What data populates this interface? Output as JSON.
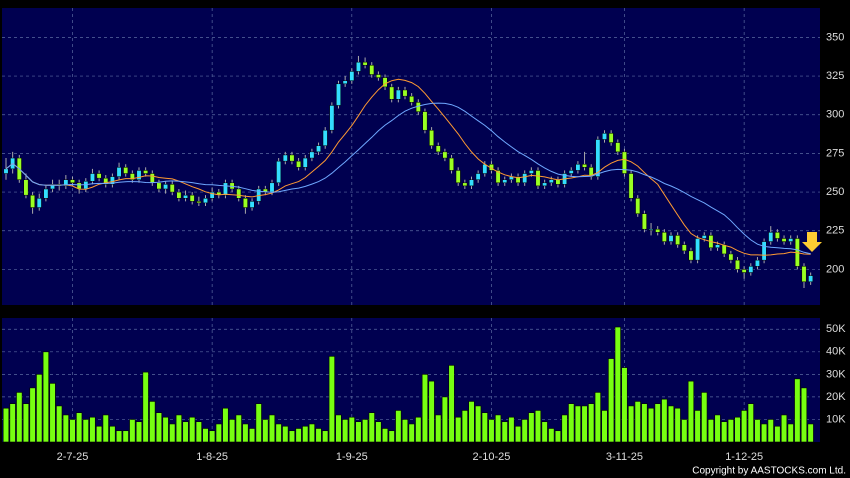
{
  "chart_data": {
    "type": "candlestick",
    "ohlc": [
      [
        262,
        272,
        258,
        265
      ],
      [
        265,
        276,
        262,
        272
      ],
      [
        272,
        274,
        256,
        258
      ],
      [
        258,
        262,
        246,
        248
      ],
      [
        248,
        250,
        236,
        240
      ],
      [
        240,
        249,
        238,
        246
      ],
      [
        246,
        254,
        244,
        252
      ],
      [
        252,
        258,
        250,
        255
      ],
      [
        255,
        258,
        251,
        254
      ],
      [
        254,
        261,
        252,
        258
      ],
      [
        258,
        260,
        254,
        256
      ],
      [
        256,
        258,
        249,
        252
      ],
      [
        252,
        259,
        250,
        257
      ],
      [
        257,
        265,
        255,
        262
      ],
      [
        262,
        264,
        257,
        259
      ],
      [
        259,
        261,
        253,
        255
      ],
      [
        255,
        262,
        253,
        260
      ],
      [
        260,
        269,
        258,
        266
      ],
      [
        266,
        268,
        260,
        262
      ],
      [
        262,
        264,
        256,
        258
      ],
      [
        258,
        266,
        256,
        264
      ],
      [
        264,
        266,
        260,
        262
      ],
      [
        262,
        264,
        254,
        256
      ],
      [
        256,
        258,
        250,
        252
      ],
      [
        252,
        257,
        249,
        255
      ],
      [
        255,
        257,
        248,
        250
      ],
      [
        250,
        252,
        244,
        246
      ],
      [
        246,
        251,
        244,
        248
      ],
      [
        248,
        250,
        242,
        244
      ],
      [
        244,
        247,
        241,
        243
      ],
      [
        243,
        248,
        241,
        246
      ],
      [
        246,
        253,
        244,
        250
      ],
      [
        250,
        252,
        246,
        248
      ],
      [
        248,
        258,
        246,
        256
      ],
      [
        256,
        258,
        250,
        252
      ],
      [
        252,
        254,
        244,
        246
      ],
      [
        246,
        248,
        236,
        240
      ],
      [
        240,
        246,
        238,
        244
      ],
      [
        244,
        254,
        242,
        252
      ],
      [
        252,
        254,
        248,
        250
      ],
      [
        250,
        258,
        248,
        256
      ],
      [
        256,
        272,
        254,
        270
      ],
      [
        270,
        276,
        268,
        274
      ],
      [
        274,
        276,
        268,
        270
      ],
      [
        270,
        272,
        264,
        266
      ],
      [
        266,
        274,
        264,
        272
      ],
      [
        272,
        278,
        270,
        276
      ],
      [
        276,
        282,
        274,
        280
      ],
      [
        280,
        292,
        278,
        290
      ],
      [
        290,
        308,
        288,
        306
      ],
      [
        306,
        322,
        304,
        320
      ],
      [
        320,
        325,
        318,
        322
      ],
      [
        322,
        330,
        320,
        328
      ],
      [
        328,
        338,
        326,
        334
      ],
      [
        334,
        337,
        330,
        332
      ],
      [
        332,
        334,
        324,
        326
      ],
      [
        326,
        328,
        322,
        324
      ],
      [
        324,
        326,
        316,
        318
      ],
      [
        318,
        320,
        308,
        310
      ],
      [
        310,
        318,
        308,
        316
      ],
      [
        316,
        318,
        310,
        312
      ],
      [
        312,
        314,
        306,
        308
      ],
      [
        308,
        310,
        300,
        302
      ],
      [
        302,
        304,
        288,
        290
      ],
      [
        290,
        292,
        278,
        280
      ],
      [
        280,
        282,
        274,
        276
      ],
      [
        276,
        278,
        270,
        272
      ],
      [
        272,
        274,
        262,
        264
      ],
      [
        264,
        266,
        254,
        256
      ],
      [
        256,
        258,
        252,
        254
      ],
      [
        254,
        260,
        252,
        258
      ],
      [
        258,
        264,
        256,
        262
      ],
      [
        262,
        270,
        260,
        268
      ],
      [
        268,
        270,
        262,
        264
      ],
      [
        264,
        266,
        254,
        256
      ],
      [
        256,
        260,
        254,
        258
      ],
      [
        258,
        262,
        256,
        260
      ],
      [
        260,
        262,
        254,
        256
      ],
      [
        256,
        264,
        254,
        262
      ],
      [
        262,
        266,
        260,
        264
      ],
      [
        264,
        266,
        252,
        254
      ],
      [
        254,
        258,
        252,
        256
      ],
      [
        256,
        260,
        254,
        258
      ],
      [
        258,
        260,
        253,
        255
      ],
      [
        255,
        264,
        253,
        262
      ],
      [
        262,
        266,
        260,
        264
      ],
      [
        264,
        270,
        262,
        268
      ],
      [
        268,
        276,
        264,
        266
      ],
      [
        266,
        268,
        258,
        260
      ],
      [
        260,
        286,
        258,
        284
      ],
      [
        284,
        290,
        282,
        288
      ],
      [
        288,
        290,
        280,
        282
      ],
      [
        282,
        284,
        274,
        276
      ],
      [
        276,
        278,
        260,
        262
      ],
      [
        262,
        264,
        244,
        246
      ],
      [
        246,
        248,
        234,
        236
      ],
      [
        236,
        238,
        224,
        226
      ],
      [
        226,
        230,
        222,
        226
      ],
      [
        226,
        228,
        222,
        224
      ],
      [
        224,
        226,
        216,
        218
      ],
      [
        218,
        224,
        216,
        222
      ],
      [
        222,
        224,
        214,
        216
      ],
      [
        216,
        218,
        210,
        212
      ],
      [
        212,
        214,
        204,
        206
      ],
      [
        206,
        222,
        204,
        220
      ],
      [
        220,
        224,
        218,
        222
      ],
      [
        222,
        224,
        212,
        214
      ],
      [
        214,
        218,
        212,
        216
      ],
      [
        216,
        218,
        208,
        210
      ],
      [
        210,
        212,
        204,
        206
      ],
      [
        206,
        208,
        198,
        200
      ],
      [
        200,
        202,
        194,
        198
      ],
      [
        198,
        204,
        196,
        202
      ],
      [
        202,
        208,
        200,
        206
      ],
      [
        206,
        220,
        204,
        218
      ],
      [
        218,
        228,
        216,
        224
      ],
      [
        224,
        226,
        218,
        220
      ],
      [
        220,
        222,
        216,
        218
      ],
      [
        218,
        222,
        216,
        220
      ],
      [
        220,
        222,
        200,
        202
      ],
      [
        202,
        204,
        188,
        192
      ],
      [
        192,
        198,
        190,
        196
      ]
    ],
    "volumes": [
      15000,
      17000,
      22000,
      17000,
      24000,
      30000,
      40000,
      26000,
      16000,
      12000,
      10000,
      13000,
      10000,
      11000,
      7000,
      12000,
      7000,
      5000,
      5000,
      10000,
      9000,
      31000,
      18000,
      13000,
      11000,
      8000,
      12000,
      9000,
      11000,
      9000,
      6000,
      5000,
      8000,
      15000,
      10000,
      12000,
      8000,
      6000,
      17000,
      10000,
      12000,
      8000,
      7000,
      5000,
      6000,
      7000,
      8000,
      6000,
      5000,
      38000,
      12000,
      10000,
      11000,
      9000,
      10000,
      13000,
      9000,
      6000,
      5000,
      14000,
      10000,
      8000,
      11000,
      30000,
      27000,
      12000,
      20000,
      34000,
      11000,
      14000,
      18000,
      16000,
      13000,
      10000,
      12000,
      9000,
      11000,
      7000,
      10000,
      13000,
      14000,
      9000,
      6000,
      5000,
      12000,
      17000,
      16000,
      16000,
      17000,
      22000,
      14000,
      37000,
      51000,
      33000,
      16000,
      18000,
      17000,
      15000,
      17000,
      19000,
      16000,
      15000,
      10000,
      27000,
      14000,
      22000,
      10000,
      12000,
      9000,
      10000,
      11000,
      14000,
      17000,
      10000,
      8000,
      10000,
      7000,
      12000,
      8000,
      28000,
      24000,
      8000
    ],
    "xlabels": [
      {
        "index": 10,
        "label": "2-7-25"
      },
      {
        "index": 31,
        "label": "1-8-25"
      },
      {
        "index": 52,
        "label": "1-9-25"
      },
      {
        "index": 73,
        "label": "2-10-25"
      },
      {
        "index": 93,
        "label": "3-11-25"
      },
      {
        "index": 111,
        "label": "1-12-25"
      }
    ],
    "ylim": [
      177,
      369
    ],
    "yticks": [
      200,
      225,
      250,
      275,
      300,
      325,
      350
    ],
    "vlim": [
      0,
      55000
    ],
    "vticks": [
      {
        "value": 10000,
        "label": "10K"
      },
      {
        "value": 20000,
        "label": "20K"
      },
      {
        "value": 30000,
        "label": "30K"
      },
      {
        "value": 40000,
        "label": "40K"
      },
      {
        "value": 50000,
        "label": "50K"
      }
    ],
    "up_color": "#33ddff",
    "down_color": "#99ff22",
    "volume_color": "#77ff11",
    "ma": [
      {
        "period": 10,
        "color": "#ff9a33"
      },
      {
        "period": 20,
        "color": "#6fa8ff"
      }
    ],
    "grid": true,
    "copyright": "Copyright by AASTOCKS.com Ltd."
  }
}
